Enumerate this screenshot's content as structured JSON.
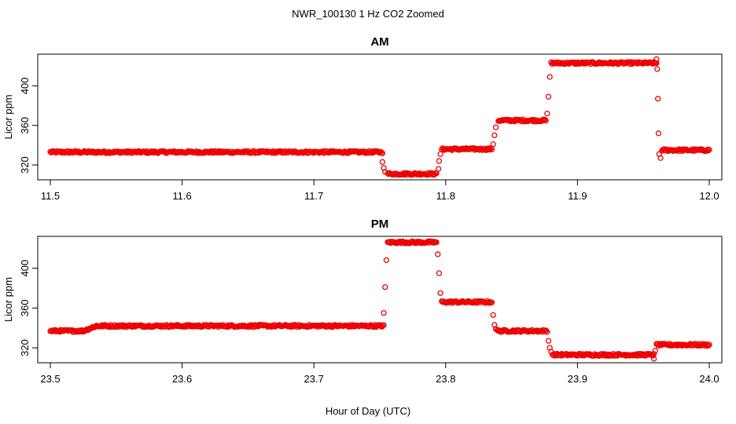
{
  "figure": {
    "title": "NWR_100130  1 Hz CO2 Zoomed",
    "xlabel": "Hour of Day (UTC)"
  },
  "chart_data": [
    {
      "type": "scatter",
      "title": "AM",
      "xlabel": "",
      "ylabel": "Licor ppm",
      "xlim": [
        11.5,
        12.0
      ],
      "ylim": [
        305,
        432
      ],
      "xticks": [
        "11.5",
        "11.6",
        "11.7",
        "11.8",
        "11.9",
        "12.0"
      ],
      "yticks": [
        "320",
        "360",
        "400"
      ],
      "color": "#ee0000",
      "segments": [
        {
          "x": [
            11.5,
            11.752
          ],
          "y": 333
        },
        {
          "x": [
            11.756,
            11.793
          ],
          "y": 311
        },
        {
          "x": [
            11.797,
            11.835
          ],
          "y": 336
        },
        {
          "x": [
            11.84,
            11.876
          ],
          "y": 365
        },
        {
          "x": [
            11.88,
            11.96
          ],
          "y": 423
        },
        {
          "x": [
            11.964,
            12.0
          ],
          "y": 335
        }
      ],
      "points": [
        {
          "x": 11.752,
          "y": 323
        },
        {
          "x": 11.753,
          "y": 317
        },
        {
          "x": 11.754,
          "y": 313
        },
        {
          "x": 11.7945,
          "y": 316
        },
        {
          "x": 11.795,
          "y": 324
        },
        {
          "x": 11.796,
          "y": 331
        },
        {
          "x": 11.836,
          "y": 341
        },
        {
          "x": 11.837,
          "y": 350
        },
        {
          "x": 11.838,
          "y": 358
        },
        {
          "x": 11.877,
          "y": 372
        },
        {
          "x": 11.878,
          "y": 389
        },
        {
          "x": 11.879,
          "y": 409
        },
        {
          "x": 11.96,
          "y": 427
        },
        {
          "x": 11.9605,
          "y": 417
        },
        {
          "x": 11.961,
          "y": 387
        },
        {
          "x": 11.9615,
          "y": 352
        },
        {
          "x": 11.962,
          "y": 331
        },
        {
          "x": 11.963,
          "y": 327
        }
      ]
    },
    {
      "type": "scatter",
      "title": "PM",
      "xlabel": "Hour of Day (UTC)",
      "ylabel": "Licor ppm",
      "xlim": [
        23.5,
        24.0
      ],
      "ylim": [
        305,
        432
      ],
      "xticks": [
        "23.5",
        "23.6",
        "23.7",
        "23.8",
        "23.9",
        "24.0"
      ],
      "yticks": [
        "320",
        "360",
        "400"
      ],
      "color": "#ee0000",
      "segments": [
        {
          "x": [
            23.5,
            23.525
          ],
          "y": 337
        },
        {
          "x": [
            23.525,
            23.535
          ],
          "y": [
            337,
            342
          ]
        },
        {
          "x": [
            23.535,
            23.753
          ],
          "y": 342
        },
        {
          "x": [
            23.756,
            23.793
          ],
          "y": 426
        },
        {
          "x": [
            23.797,
            23.835
          ],
          "y": 366
        },
        {
          "x": [
            23.839,
            23.877
          ],
          "y": 337
        },
        {
          "x": [
            23.881,
            23.958
          ],
          "y": 313
        },
        {
          "x": [
            23.96,
            24.0
          ],
          "y": 323
        }
      ],
      "points": [
        {
          "x": 23.753,
          "y": 355
        },
        {
          "x": 23.754,
          "y": 381
        },
        {
          "x": 23.755,
          "y": 408
        },
        {
          "x": 23.794,
          "y": 414
        },
        {
          "x": 23.795,
          "y": 395
        },
        {
          "x": 23.796,
          "y": 375
        },
        {
          "x": 23.836,
          "y": 353
        },
        {
          "x": 23.837,
          "y": 343
        },
        {
          "x": 23.838,
          "y": 339
        },
        {
          "x": 23.878,
          "y": 327
        },
        {
          "x": 23.879,
          "y": 320
        },
        {
          "x": 23.88,
          "y": 316
        },
        {
          "x": 23.958,
          "y": 309
        },
        {
          "x": 23.959,
          "y": 317
        },
        {
          "x": 23.96,
          "y": 324
        }
      ]
    }
  ]
}
